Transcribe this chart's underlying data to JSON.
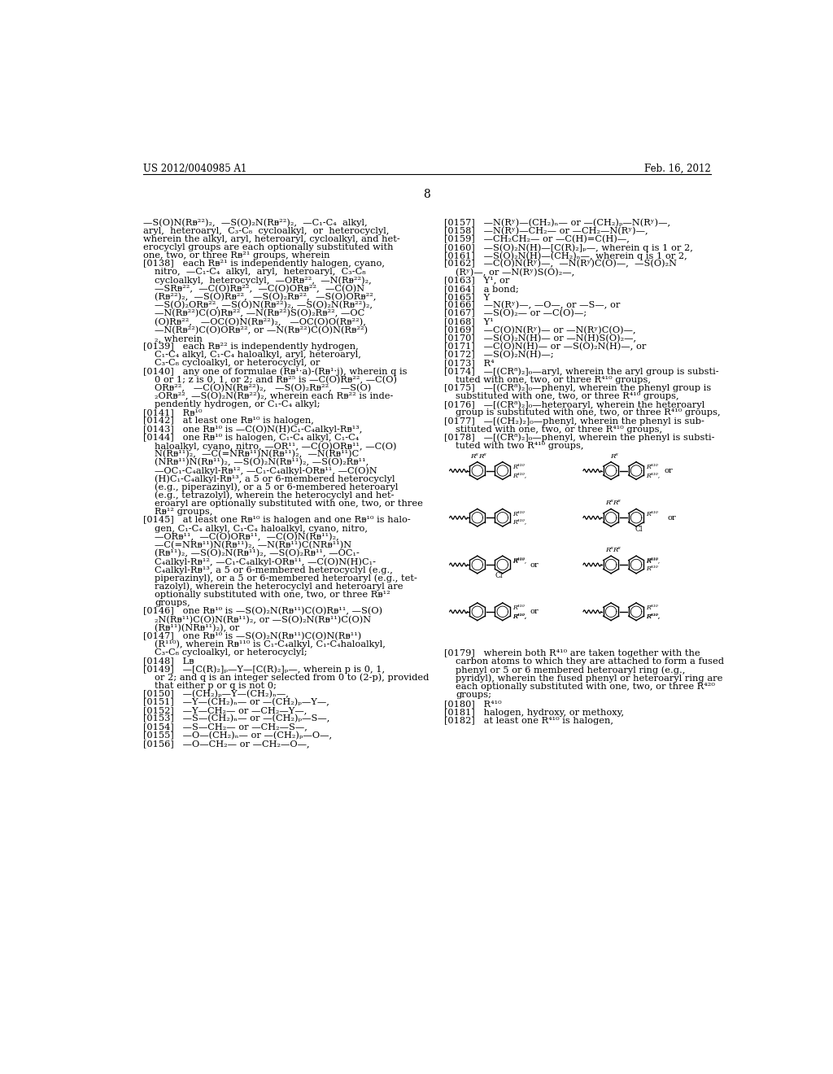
{
  "background_color": "#ffffff",
  "header_left": "US 2012/0040985 A1",
  "header_right": "Feb. 16, 2012",
  "page_number": "8",
  "left_col": [
    [
      62,
      "—S(O)N(Rᴃ²²)₂,  —S(O)₂N(Rᴃ²²)₂,  —C₁-C₄  alkyl,"
    ],
    [
      62,
      "aryl,  heteroaryl,  C₃-C₈  cycloalkyl,  or  heterocyclyl,"
    ],
    [
      62,
      "wherein the alkyl, aryl, heteroaryl, cycloalkyl, and het-"
    ],
    [
      62,
      "erocyclyl groups are each optionally substituted with"
    ],
    [
      62,
      "one, two, or three Rᴃ²¹ groups, wherein"
    ],
    [
      62,
      "[0138]   each Rᴃ²¹ is independently halogen, cyano,"
    ],
    [
      80,
      "nitro,  —C₁-C₄  alkyl,  aryl,  heteroaryl,  C₃-C₈"
    ],
    [
      80,
      "cycloalkyl,  heterocyclyl,  —ORᴃ²²,  —N(Rᴃ²²)₂,"
    ],
    [
      80,
      "—SRᴃ²²,  —C(O)Rᴃ²²,  —C(O)ORᴃ²²,  —C(O)N"
    ],
    [
      80,
      "(Rᴃ²²)₂,  —S(O)Rᴃ²²,  —S(O)₂Rᴃ²²,  —S(O)ORᴃ²²,"
    ],
    [
      80,
      "—S(O)₂ORᴃ²², —S(O)N(Rᴃ²²)₂, —S(O)₂N(Rᴃ²²)₂,"
    ],
    [
      80,
      "—N(Rᴃ²²)C(O)Rᴃ²², —N(Rᴃ²²)S(O)₂Rᴃ²², —OC"
    ],
    [
      80,
      "(O)Rᴃ²²,   —OC(O)N(Rᴃ²²)₂,   —OC(O)O(Rᴃ²²),"
    ],
    [
      80,
      "—N(Rᴃ²²)C(O)ORᴃ²², or —N(Rᴃ²²)C(O)N(Rᴃ²²)"
    ],
    [
      80,
      "₂, wherein"
    ],
    [
      62,
      "[0139]   each Rᴃ²² is independently hydrogen,"
    ],
    [
      80,
      "C₁-C₄ alkyl, C₁-C₄ haloalkyl, aryl, heteroaryl,"
    ],
    [
      80,
      "C₃-C₈ cycloalkyl, or heterocyclyl, or"
    ],
    [
      62,
      "[0140]   any one of formulae (Rᴃ¹·a)-(Rᴃ¹·j), wherein q is"
    ],
    [
      80,
      "0 or 1; z is 0, 1, or 2; and Rᴃ²⁵ is —C(O)Rᴃ²², —C(O)"
    ],
    [
      80,
      "ORᴃ²²,   —C(O)N(Rᴃ²²)₂,   —S(O)₂Rᴃ²²,   —S(O)"
    ],
    [
      80,
      "₂ORᴃ²², —S(O)₂N(Rᴃ²²)₂, wherein each Rᴃ²² is inde-"
    ],
    [
      80,
      "pendently hydrogen, or C₁-C₄ alkyl;"
    ],
    [
      62,
      "[0141]   Rᴃ¹⁰"
    ],
    [
      62,
      "[0142]   at least one Rᴃ¹⁰ is halogen,"
    ],
    [
      62,
      "[0143]   one Rᴃ¹⁰ is —C(O)N(H)C₁-C₄alkyl-Rᴃ¹³,"
    ],
    [
      62,
      "[0144]   one Rᴃ¹⁰ is halogen, C₁-C₄ alkyl, C₁-C₄"
    ],
    [
      80,
      "haloalkyl, cyano, nitro, —OR¹¹, —C(O)ORᴃ¹¹, —C(O)"
    ],
    [
      80,
      "N(Rᴃ¹¹)₂,  —C(=NRᴃ¹¹)N(Rᴃ¹¹)₂,  —N(Rᴃ¹¹)C"
    ],
    [
      80,
      "(NRᴃ¹¹)N(Rᴃ¹¹)₂, —S(O)₂N(Rᴃ¹¹)₂, —S(O)₂Rᴃ¹¹,"
    ],
    [
      80,
      "—OC₁-C₄alkyl-Rᴃ¹², —C₁-C₄alkyl-ORᴃ¹¹, —C(O)N"
    ],
    [
      80,
      "(H)C₁-C₄alkyl-Rᴃ¹³, a 5 or 6-membered heterocyclyl"
    ],
    [
      80,
      "(e.g., piperazinyl), or a 5 or 6-membered heteroaryl"
    ],
    [
      80,
      "(e.g., tetrazolyl), wherein the heterocyclyl and het-"
    ],
    [
      80,
      "eroaryl are optionally substituted with one, two, or three"
    ],
    [
      80,
      "Rᴃ¹² groups,"
    ],
    [
      62,
      "[0145]   at least one Rᴃ¹⁰ is halogen and one Rᴃ¹⁰ is halo-"
    ],
    [
      80,
      "gen, C₁-C₄ alkyl, C₁-C₄ haloalkyl, cyano, nitro,"
    ],
    [
      80,
      "—ORᴃ¹¹,  —C(O)ORᴃ¹¹,  —C(O)N(Rᴃ¹¹)₂,"
    ],
    [
      80,
      "—C(=NRᴃ¹¹)N(Rᴃ¹¹)₂, —N(Rᴃ¹¹)C(NRᴃ¹¹)N"
    ],
    [
      80,
      "(Rᴃ¹¹)₂, —S(O)₂N(Rᴃ¹¹)₂, —S(O)₂Rᴃ¹¹, —OC₁-"
    ],
    [
      80,
      "C₄alkyl-Rᴃ¹², —C₁-C₄alkyl-ORᴃ¹¹, —C(O)N(H)C₁-"
    ],
    [
      80,
      "C₄alkyl-Rᴃ¹³, a 5 or 6-membered heterocyclyl (e.g.,"
    ],
    [
      80,
      "piperazinyl), or a 5 or 6-membered heteroaryl (e.g., tet-"
    ],
    [
      80,
      "razolyl), wherein the heterocyclyl and heteroaryl are"
    ],
    [
      80,
      "optionally substituted with one, two, or three Rᴃ¹²"
    ],
    [
      80,
      "groups,"
    ],
    [
      62,
      "[0146]   one Rᴃ¹⁰ is —S(O)₂N(Rᴃ¹¹)C(O)Rᴃ¹¹, —S(O)"
    ],
    [
      80,
      "₂N(Rᴃ¹¹)C(O)N(Rᴃ¹¹)₂, or —S(O)₂N(Rᴃ¹¹)C(O)N"
    ],
    [
      80,
      "(Rᴃ¹¹)(NRᴃ¹¹)₂), or"
    ],
    [
      62,
      "[0147]   one Rᴃ¹⁰ is —S(O)₂N(Rᴃ¹¹)C(O)N(Rᴃ¹¹)"
    ],
    [
      80,
      "(R¹¹⁰), wherein Rᴃ¹¹⁰ is C₁-C₄alkyl, C₁-C₄haloalkyl,"
    ],
    [
      80,
      "C₃-C₈ cycloalkyl, or heterocyclyl;"
    ],
    [
      62,
      "[0148]   Lᴃ"
    ],
    [
      62,
      "[0149]   —[C(R)₂]ₚ—Y—[C(R)₂]ₚ—, wherein p is 0, 1,"
    ],
    [
      80,
      "or 2; and q is an integer selected from 0 to (2-p), provided"
    ],
    [
      80,
      "that either p or q is not 0;"
    ],
    [
      62,
      "[0150]   —(CH₂)ₚ—Y—(CH₂)ₙ—,"
    ],
    [
      62,
      "[0151]   —Y—(CH₂)ₙ— or —(CH₂)ₚ—Y—,"
    ],
    [
      62,
      "[0152]   —Y—CH₂— or —CH₂—Y—,"
    ],
    [
      62,
      "[0153]   —S—(CH₂)ₙ— or —(CH₂)ₚ—S—,"
    ],
    [
      62,
      "[0154]   —S—CH₂— or —CH₂—S—,"
    ],
    [
      62,
      "[0155]   —O—(CH₂)ₙ— or —(CH₂)ₚ—O—,"
    ],
    [
      62,
      "[0156]   —O—CH₂— or —CH₂—O—,"
    ]
  ],
  "right_col": [
    [
      540,
      "[0157]   —N(Rʸ)—(CH₂)ₙ— or —(CH₂)ₚ—N(Rʸ)—,"
    ],
    [
      540,
      "[0158]   —N(Rʸ)—CH₂— or —CH₂—N(Rʸ)—,"
    ],
    [
      540,
      "[0159]   —CH₂CH₂— or —C(H)=C(H)—,"
    ],
    [
      540,
      "[0160]   —S(O)₂N(H)—[C(R)₂]ₚ—, wherein q is 1 or 2,"
    ],
    [
      540,
      "[0161]   —S(O)₂N(H)—(CH₂)ₙ—, wherein q is 1 or 2,"
    ],
    [
      540,
      "[0162]   —C(O)N(Rʸ)—,  —N(Rʸ)C(O)—,  —S(O)₂N"
    ],
    [
      558,
      "(Rʸ)—, or —N(Rʸ)S(O)₂—,"
    ],
    [
      540,
      "[0163]   Y¹, or"
    ],
    [
      540,
      "[0164]   a bond;"
    ],
    [
      540,
      "[0165]   Y"
    ],
    [
      540,
      "[0166]   —N(Rʸ)—, —O—, or —S—, or"
    ],
    [
      540,
      "[0167]   —S(O)₂— or —C(O)—;"
    ],
    [
      540,
      "[0168]   Y¹"
    ],
    [
      540,
      "[0169]   —C(O)N(Rʸ)— or —N(Rʸ)C(O)—,"
    ],
    [
      540,
      "[0170]   —S(O)₂N(H)— or —N(H)S(O)₂—,"
    ],
    [
      540,
      "[0171]   —C(O)N(H)— or —S(O)₂N(H)—, or"
    ],
    [
      540,
      "[0172]   —S(O)₂N(H)—;"
    ],
    [
      540,
      "[0173]   R⁴"
    ],
    [
      540,
      "[0174]   —[(CR⁸)₂]₀—aryl, wherein the aryl group is substi-"
    ],
    [
      558,
      "tuted with one, two, or three R⁴¹⁰ groups,"
    ],
    [
      540,
      "[0175]   —[(CR⁸)₂]₀—phenyl, wherein the phenyl group is"
    ],
    [
      558,
      "substituted with one, two, or three R⁴¹⁰ groups,"
    ],
    [
      540,
      "[0176]   —[(CR⁸)₂]₀—heteroaryl, wherein the heteroaryl"
    ],
    [
      558,
      "group is substituted with one, two, or three R⁴¹⁰ groups,"
    ],
    [
      540,
      "[0177]   —[(CH₂)₂]₀—phenyl, wherein the phenyl is sub-"
    ],
    [
      558,
      "stituted with one, two, or three R⁴¹⁰ groups,"
    ],
    [
      540,
      "[0178]   —[(CR⁸)₂]₀—phenyl, wherein the phenyl is substi-"
    ],
    [
      558,
      "tuted with two R⁴¹⁰ groups,"
    ]
  ],
  "para_179_lines": [
    "[0179]   wherein both R⁴¹⁰ are taken together with the",
    "carbon atoms to which they are attached to form a fused",
    "phenyl or 5 or 6 membered heteroaryl ring (e.g.,",
    "pyridyl), wherein the fused phenyl or heteroaryl ring are",
    "each optionally substituted with one, two, or three R⁴²⁰",
    "groups;"
  ],
  "para_180_lines": [
    "[0180]   R⁴¹⁰",
    "[0181]   halogen, hydroxy, or methoxy,",
    "[0182]   at least one R⁴¹⁰ is halogen,"
  ]
}
